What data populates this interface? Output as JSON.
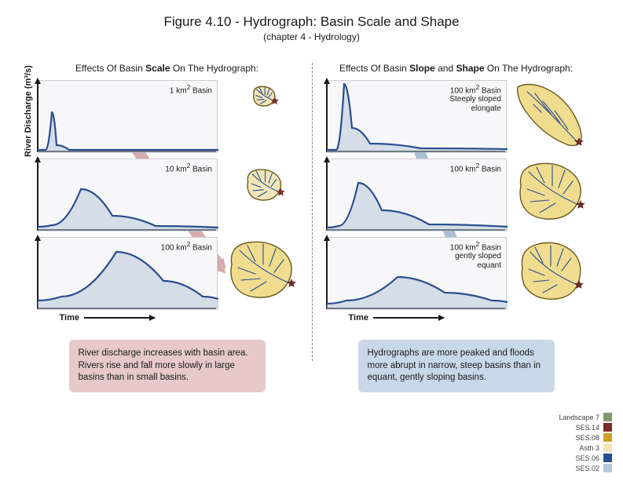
{
  "title": "Figure 4.10 - Hydrograph: Basin Scale and Shape",
  "subtitle": "(chapter 4 - Hydrology)",
  "yaxis": "River Discharge (m³/s)",
  "xaxis": "Time",
  "colors": {
    "chart_bg": "#f7f7f9",
    "chart_border": "#cccccc",
    "axis": "#1a1a1a",
    "hydrograph_line": "#2a4f8f",
    "hydrograph_line_width": 2.2,
    "hydrograph_fill": "#b9c9db",
    "hydrograph_fill_opacity": 0.55,
    "basin_fill": "#efdc8f",
    "basin_fill_small": "#f1e6b8",
    "basin_stroke": "#6b5a1f",
    "streams": "#2a4f8f",
    "outlet_star": "#7e2a2a",
    "pink_caption_bg": "#e6c9c8",
    "blue_caption_bg": "#c9d8e8",
    "pink_arrow": "#c98f93",
    "blue_arrow": "#8fa9c6",
    "divider": "#888888"
  },
  "left": {
    "title_html": "Effects Of Basin <b>Scale</b> On The Hydrograph:",
    "panels": [
      {
        "label_html": "1 km<sup>2</sup> Basin",
        "hydrograph": [
          [
            0,
            88
          ],
          [
            10,
            88
          ],
          [
            18,
            40
          ],
          [
            24,
            82
          ],
          [
            40,
            88
          ],
          [
            230,
            88
          ]
        ],
        "basin_scale": 0.35,
        "basin_shape": "round",
        "basin_offset": [
          36,
          8
        ]
      },
      {
        "label_html": "10 km<sup>2</sup> Basin",
        "hydrograph": [
          [
            0,
            86
          ],
          [
            18,
            84
          ],
          [
            55,
            38
          ],
          [
            95,
            72
          ],
          [
            150,
            85
          ],
          [
            230,
            87
          ]
        ],
        "basin_scale": 0.55,
        "basin_shape": "round",
        "basin_offset": [
          26,
          12
        ]
      },
      {
        "label_html": "100 km<sup>2</sup> Basin",
        "hydrograph": [
          [
            0,
            80
          ],
          [
            30,
            75
          ],
          [
            100,
            18
          ],
          [
            160,
            55
          ],
          [
            210,
            75
          ],
          [
            230,
            78
          ]
        ],
        "basin_scale": 1.0,
        "basin_shape": "round",
        "basin_offset": [
          0,
          0
        ]
      }
    ],
    "caption": "River discharge increases with basin area. Rivers rise and fall more slowly in large basins than in small basins.",
    "trend_arrow": {
      "color": "#c98f93",
      "opacity": 0.75,
      "from": [
        60,
        40
      ],
      "to": [
        210,
        250
      ],
      "width": 14
    }
  },
  "right": {
    "title_html": "Effects Of Basin <b>Slope</b> and <b>Shape</b> On The Hydrograph:",
    "panels": [
      {
        "label_html": "100 km<sup>2</sup> Basin<br>Steeply sloped<br>elongate",
        "hydrograph": [
          [
            0,
            88
          ],
          [
            12,
            88
          ],
          [
            22,
            4
          ],
          [
            32,
            60
          ],
          [
            55,
            80
          ],
          [
            120,
            86
          ],
          [
            230,
            87
          ]
        ],
        "basin_scale": 1.0,
        "basin_shape": "elongate",
        "basin_offset": [
          0,
          0
        ]
      },
      {
        "label_html": "100 km<sup>2</sup> Basin",
        "hydrograph": [
          [
            0,
            87
          ],
          [
            15,
            85
          ],
          [
            40,
            30
          ],
          [
            70,
            65
          ],
          [
            130,
            83
          ],
          [
            230,
            86
          ]
        ],
        "basin_scale": 1.0,
        "basin_shape": "round",
        "basin_offset": [
          0,
          0
        ]
      },
      {
        "label_html": "100 km<sup>2</sup> Basin<br>gently sloped<br>equant",
        "hydrograph": [
          [
            0,
            84
          ],
          [
            25,
            80
          ],
          [
            90,
            50
          ],
          [
            150,
            70
          ],
          [
            210,
            80
          ],
          [
            230,
            82
          ]
        ],
        "basin_scale": 1.0,
        "basin_shape": "equant",
        "basin_offset": [
          0,
          0
        ]
      }
    ],
    "caption": "Hydrographs are more peaked and floods more abrupt in narrow, steep basins than in equant, gently sloping basins.",
    "trend_arrow": {
      "color": "#8fa9c6",
      "opacity": 0.75,
      "from": [
        62,
        20
      ],
      "to": [
        150,
        260
      ],
      "width": 14
    }
  },
  "legend": [
    {
      "label": "Landscape 7",
      "color": "#7b9b6f"
    },
    {
      "label": "SES.14",
      "color": "#7e2a2a"
    },
    {
      "label": "SES.08",
      "color": "#c9a227"
    },
    {
      "label": "Asth 3",
      "color": "#f1e6b8"
    },
    {
      "label": "SES.06",
      "color": "#2a4f8f"
    },
    {
      "label": "SES.02",
      "color": "#b9c9db"
    }
  ]
}
